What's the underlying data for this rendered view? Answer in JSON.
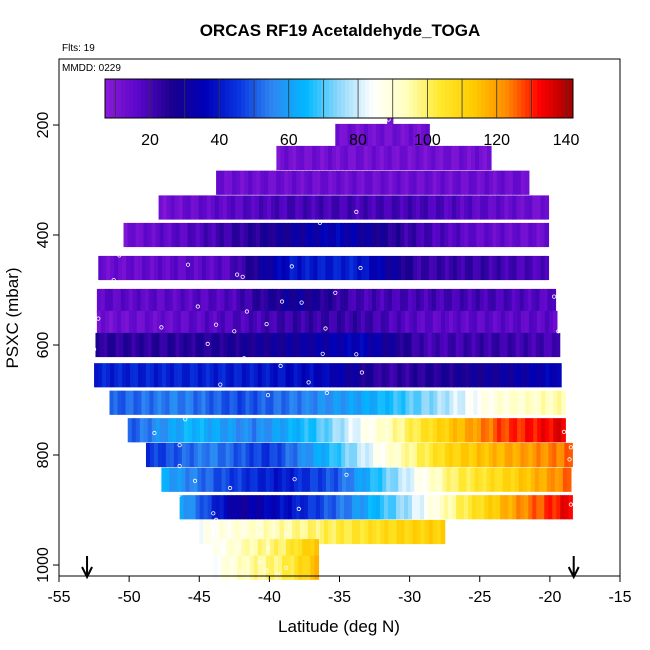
{
  "chart_data": {
    "type": "heatmap",
    "title": "ORCAS RF19 Acetaldehyde_TOGA",
    "flights_label": "Flts: 19",
    "date_label": "MMDD: 0229",
    "xlabel": "Latitude (deg N)",
    "ylabel": "PSXC (mbar)",
    "xlim": [
      -55,
      -15
    ],
    "ylim": [
      1020,
      80
    ],
    "x_ticks": [
      -55,
      -50,
      -45,
      -40,
      -35,
      -30,
      -25,
      -20,
      -15
    ],
    "y_ticks": [
      200,
      400,
      600,
      800,
      1000
    ],
    "colorbar": {
      "range": [
        7,
        142
      ],
      "ticks": [
        20,
        40,
        60,
        80,
        100,
        120,
        140
      ],
      "stops": [
        "#8b1ad9",
        "#5b06c9",
        "#1b008e",
        "#0000b8",
        "#0a35e0",
        "#2f86f2",
        "#00b8ff",
        "#8fd7fb",
        "#ffffff",
        "#ffffc0",
        "#ffe930",
        "#ffcc00",
        "#ff8c00",
        "#ff0000",
        "#a00000"
      ]
    },
    "arrows_lat": [
      -53,
      -18.3
    ],
    "bands": [
      {
        "p": 180,
        "lat": [
          -31.6,
          -31.2
        ],
        "v": [
          12,
          12
        ]
      },
      {
        "p": 220,
        "lat": [
          -35.3,
          -28.6
        ],
        "v": [
          12,
          12
        ]
      },
      {
        "p": 260,
        "lat": [
          -39.5,
          -24.2
        ],
        "v": [
          12,
          12
        ]
      },
      {
        "p": 305,
        "lat": [
          -43.8,
          -21.5
        ],
        "v": [
          13,
          13
        ]
      },
      {
        "p": 350,
        "lat": [
          -47.9,
          -20.1
        ],
        "v": [
          12,
          20,
          20,
          12
        ]
      },
      {
        "p": 400,
        "lat": [
          -50.4,
          -20.1
        ],
        "v": [
          12,
          18,
          26,
          36,
          22,
          15,
          13
        ]
      },
      {
        "p": 460,
        "lat": [
          -52.2,
          -20.1
        ],
        "v": [
          13,
          15,
          17,
          40,
          42,
          22,
          22,
          18
        ]
      },
      {
        "p": 520,
        "lat": [
          -52.3,
          -19.6
        ],
        "v": [
          16,
          16,
          18,
          30,
          20,
          20,
          20,
          17
        ]
      },
      {
        "p": 560,
        "lat": [
          -52.3,
          -19.5
        ],
        "v": [
          12,
          14,
          18,
          22,
          22,
          16,
          16,
          16
        ]
      },
      {
        "p": 600,
        "lat": [
          -52.4,
          -19.3
        ],
        "v": [
          24,
          24,
          26,
          30,
          36,
          20,
          22,
          20
        ]
      },
      {
        "p": 655,
        "lat": [
          -52.5,
          -19.2
        ],
        "v": [
          42,
          42,
          42,
          40,
          36,
          22,
          26,
          30,
          36
        ]
      },
      {
        "p": 705,
        "lat": [
          -51.4,
          -18.9
        ],
        "v": [
          50,
          55,
          48,
          55,
          62,
          75,
          90,
          95
        ]
      },
      {
        "p": 755,
        "lat": [
          -50.1,
          -18.9
        ],
        "v": [
          50,
          65,
          55,
          68,
          90,
          110,
          128,
          135
        ]
      },
      {
        "p": 800,
        "lat": [
          -48.8,
          -18.4
        ],
        "v": [
          45,
          55,
          45,
          65,
          90,
          110,
          118,
          125
        ]
      },
      {
        "p": 845,
        "lat": [
          -47.7,
          -18.5
        ],
        "v": [
          62,
          48,
          40,
          50,
          75,
          100,
          110,
          125
        ]
      },
      {
        "p": 895,
        "lat": [
          -46.4,
          -18.4
        ],
        "v": [
          62,
          30,
          40,
          55,
          75,
          100,
          120,
          135
        ]
      },
      {
        "p": 940,
        "lat": [
          -45.0,
          -27.5
        ],
        "v": [
          85,
          90,
          95,
          100,
          105,
          110,
          112
        ]
      },
      {
        "p": 975,
        "lat": [
          -44.0,
          -36.5
        ],
        "v": [
          85,
          95,
          100,
          115
        ]
      },
      {
        "p": 1005,
        "lat": [
          -44.0,
          -36.5
        ],
        "v": [
          85,
          95,
          100,
          115
        ]
      }
    ],
    "points": [
      [
        -31.4,
        175
      ],
      [
        -31.5,
        190
      ],
      [
        -33.8,
        358
      ],
      [
        -36.4,
        378
      ],
      [
        -19.8,
        404
      ],
      [
        -50.7,
        437
      ],
      [
        -45.8,
        454
      ],
      [
        -38.4,
        457
      ],
      [
        -33.5,
        460
      ],
      [
        -51.1,
        482
      ],
      [
        -42.3,
        472
      ],
      [
        -41.9,
        476
      ],
      [
        -40.4,
        488
      ],
      [
        -37.6,
        493
      ],
      [
        -35.3,
        505
      ],
      [
        -19.7,
        512
      ],
      [
        -39.1,
        521
      ],
      [
        -37.7,
        523
      ],
      [
        -45.1,
        530
      ],
      [
        -41.6,
        539
      ],
      [
        -52.2,
        552
      ],
      [
        -40.2,
        562
      ],
      [
        -43.8,
        563
      ],
      [
        -47.7,
        568
      ],
      [
        -36.0,
        570
      ],
      [
        -42.5,
        575
      ],
      [
        -19.4,
        575
      ],
      [
        -19.1,
        594
      ],
      [
        -52.5,
        608
      ],
      [
        -44.4,
        598
      ],
      [
        -36.2,
        616
      ],
      [
        -33.8,
        617
      ],
      [
        -41.8,
        624
      ],
      [
        -39.2,
        638
      ],
      [
        -33.4,
        650
      ],
      [
        -43.5,
        672
      ],
      [
        -37.2,
        668
      ],
      [
        -35.9,
        687
      ],
      [
        -40.1,
        691
      ],
      [
        -46.0,
        735
      ],
      [
        -32.6,
        734
      ],
      [
        -48.2,
        760
      ],
      [
        -19.0,
        758
      ],
      [
        -46.4,
        782
      ],
      [
        -18.5,
        786
      ],
      [
        -18.6,
        808
      ],
      [
        -46.4,
        820
      ],
      [
        -34.5,
        836
      ],
      [
        -38.2,
        844
      ],
      [
        -45.3,
        847
      ],
      [
        -42.8,
        860
      ],
      [
        -46.4,
        872
      ],
      [
        -37.9,
        898
      ],
      [
        -44.0,
        906
      ],
      [
        -43.8,
        918
      ],
      [
        -18.5,
        890
      ],
      [
        -38.8,
        943
      ],
      [
        -43.7,
        960
      ],
      [
        -40.1,
        970
      ],
      [
        -40.7,
        995
      ],
      [
        -38.8,
        1005
      ],
      [
        -40.2,
        1010
      ],
      [
        -42.0,
        1012
      ],
      [
        -39.4,
        1017
      ]
    ]
  }
}
